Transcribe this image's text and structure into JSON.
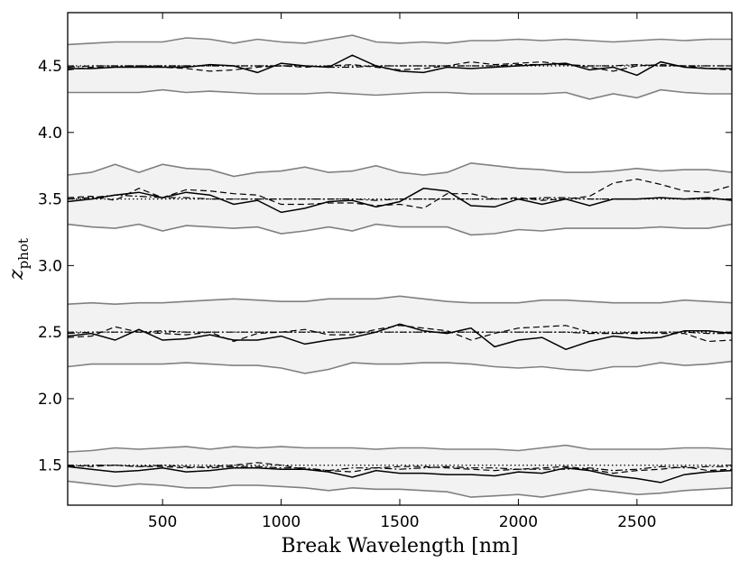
{
  "chart_data": {
    "type": "line",
    "xlabel": "Break Wavelength [nm]",
    "ylabel_main": "z",
    "ylabel_sub": "phot",
    "xlim": [
      100,
      2900
    ],
    "ylim": [
      1.2,
      4.9
    ],
    "x_ticks": [
      500,
      1000,
      1500,
      2000,
      2500
    ],
    "x_tick_labels": [
      "500",
      "1000",
      "1500",
      "2000",
      "2500"
    ],
    "y_ticks": [
      1.5,
      2.0,
      2.5,
      3.0,
      3.5,
      4.0,
      4.5
    ],
    "y_tick_labels": [
      "1.5",
      "2.0",
      "2.5",
      "3.0",
      "3.5",
      "4.0",
      "4.5"
    ],
    "grid": false,
    "x": [
      100,
      200,
      300,
      400,
      500,
      600,
      700,
      800,
      900,
      1000,
      1100,
      1200,
      1300,
      1400,
      1500,
      1600,
      1700,
      1800,
      1900,
      2000,
      2100,
      2200,
      2300,
      2400,
      2500,
      2600,
      2700,
      2800,
      2900
    ],
    "colors": {
      "band_fill": "#f2f2f2",
      "band_edge": "#808080",
      "solid": "#000000",
      "dashed": "#000000",
      "dashdot": "#000000",
      "truth": "#000000"
    },
    "groups": [
      {
        "truth": 1.5,
        "band_upper": [
          1.6,
          1.61,
          1.63,
          1.62,
          1.63,
          1.64,
          1.62,
          1.64,
          1.63,
          1.64,
          1.63,
          1.63,
          1.63,
          1.62,
          1.63,
          1.63,
          1.62,
          1.62,
          1.62,
          1.61,
          1.63,
          1.65,
          1.62,
          1.62,
          1.62,
          1.62,
          1.63,
          1.63,
          1.62
        ],
        "band_lower": [
          1.38,
          1.36,
          1.34,
          1.36,
          1.35,
          1.33,
          1.33,
          1.35,
          1.35,
          1.34,
          1.33,
          1.31,
          1.33,
          1.32,
          1.32,
          1.31,
          1.3,
          1.26,
          1.27,
          1.28,
          1.26,
          1.29,
          1.32,
          1.3,
          1.28,
          1.29,
          1.31,
          1.32,
          1.33
        ],
        "solid": [
          1.49,
          1.47,
          1.45,
          1.46,
          1.48,
          1.45,
          1.46,
          1.48,
          1.48,
          1.47,
          1.47,
          1.45,
          1.41,
          1.46,
          1.44,
          1.44,
          1.43,
          1.43,
          1.42,
          1.45,
          1.44,
          1.48,
          1.46,
          1.42,
          1.4,
          1.37,
          1.43,
          1.45,
          1.46
        ],
        "dashed": [
          1.5,
          1.49,
          1.5,
          1.49,
          1.49,
          1.48,
          1.49,
          1.5,
          1.52,
          1.5,
          1.47,
          1.46,
          1.45,
          1.48,
          1.49,
          1.49,
          1.48,
          1.47,
          1.46,
          1.47,
          1.48,
          1.49,
          1.47,
          1.44,
          1.46,
          1.47,
          1.49,
          1.46,
          1.47
        ],
        "dashdot": [
          1.49,
          1.5,
          1.5,
          1.49,
          1.5,
          1.49,
          1.48,
          1.49,
          1.49,
          1.48,
          1.48,
          1.46,
          1.48,
          1.48,
          1.47,
          1.48,
          1.49,
          1.48,
          1.48,
          1.47,
          1.47,
          1.47,
          1.48,
          1.46,
          1.47,
          1.49,
          1.48,
          1.49,
          1.49
        ]
      },
      {
        "truth": 2.5,
        "band_upper": [
          2.71,
          2.72,
          2.71,
          2.72,
          2.72,
          2.73,
          2.74,
          2.75,
          2.74,
          2.73,
          2.73,
          2.75,
          2.75,
          2.75,
          2.77,
          2.75,
          2.73,
          2.72,
          2.72,
          2.72,
          2.74,
          2.74,
          2.73,
          2.72,
          2.72,
          2.72,
          2.74,
          2.73,
          2.72
        ],
        "band_lower": [
          2.24,
          2.26,
          2.26,
          2.26,
          2.26,
          2.27,
          2.26,
          2.25,
          2.25,
          2.23,
          2.19,
          2.22,
          2.27,
          2.26,
          2.26,
          2.27,
          2.27,
          2.26,
          2.24,
          2.23,
          2.24,
          2.22,
          2.21,
          2.24,
          2.24,
          2.27,
          2.25,
          2.26,
          2.28
        ],
        "solid": [
          2.47,
          2.49,
          2.44,
          2.52,
          2.44,
          2.45,
          2.48,
          2.44,
          2.44,
          2.47,
          2.41,
          2.44,
          2.46,
          2.5,
          2.56,
          2.51,
          2.49,
          2.53,
          2.39,
          2.44,
          2.46,
          2.37,
          2.43,
          2.47,
          2.45,
          2.46,
          2.51,
          2.51,
          2.49
        ],
        "dashed": [
          2.46,
          2.47,
          2.54,
          2.5,
          2.49,
          2.48,
          2.5,
          2.43,
          2.49,
          2.5,
          2.52,
          2.48,
          2.48,
          2.52,
          2.55,
          2.53,
          2.51,
          2.44,
          2.49,
          2.53,
          2.54,
          2.55,
          2.5,
          2.49,
          2.5,
          2.49,
          2.49,
          2.43,
          2.44
        ],
        "dashdot": [
          2.49,
          2.5,
          2.5,
          2.5,
          2.51,
          2.5,
          2.5,
          2.5,
          2.5,
          2.5,
          2.5,
          2.5,
          2.5,
          2.5,
          2.5,
          2.5,
          2.5,
          2.5,
          2.5,
          2.5,
          2.5,
          2.5,
          2.49,
          2.49,
          2.49,
          2.5,
          2.5,
          2.49,
          2.49
        ]
      },
      {
        "truth": 3.5,
        "band_upper": [
          3.68,
          3.7,
          3.76,
          3.7,
          3.76,
          3.73,
          3.72,
          3.67,
          3.7,
          3.71,
          3.74,
          3.7,
          3.71,
          3.75,
          3.7,
          3.68,
          3.7,
          3.77,
          3.75,
          3.73,
          3.72,
          3.7,
          3.7,
          3.71,
          3.73,
          3.71,
          3.72,
          3.72,
          3.7
        ],
        "band_lower": [
          3.31,
          3.29,
          3.28,
          3.31,
          3.26,
          3.3,
          3.29,
          3.28,
          3.29,
          3.24,
          3.26,
          3.29,
          3.26,
          3.31,
          3.29,
          3.29,
          3.29,
          3.23,
          3.24,
          3.27,
          3.26,
          3.28,
          3.28,
          3.28,
          3.28,
          3.29,
          3.28,
          3.28,
          3.31
        ],
        "solid": [
          3.48,
          3.5,
          3.53,
          3.55,
          3.51,
          3.55,
          3.53,
          3.46,
          3.49,
          3.4,
          3.43,
          3.48,
          3.49,
          3.44,
          3.48,
          3.58,
          3.56,
          3.45,
          3.44,
          3.5,
          3.46,
          3.5,
          3.45,
          3.5,
          3.5,
          3.51,
          3.5,
          3.51,
          3.49
        ],
        "dashed": [
          3.51,
          3.52,
          3.49,
          3.58,
          3.51,
          3.57,
          3.56,
          3.54,
          3.53,
          3.46,
          3.46,
          3.47,
          3.47,
          3.45,
          3.46,
          3.43,
          3.54,
          3.54,
          3.5,
          3.51,
          3.49,
          3.5,
          3.52,
          3.62,
          3.65,
          3.61,
          3.56,
          3.55,
          3.6
        ],
        "dashdot": [
          3.5,
          3.51,
          3.53,
          3.52,
          3.51,
          3.51,
          3.5,
          3.5,
          3.5,
          3.5,
          3.5,
          3.5,
          3.5,
          3.49,
          3.5,
          3.5,
          3.5,
          3.5,
          3.5,
          3.5,
          3.51,
          3.51,
          3.5,
          3.5,
          3.5,
          3.51,
          3.5,
          3.5,
          3.5
        ]
      },
      {
        "truth": 4.5,
        "band_upper": [
          4.66,
          4.67,
          4.68,
          4.68,
          4.68,
          4.71,
          4.7,
          4.67,
          4.7,
          4.68,
          4.67,
          4.7,
          4.73,
          4.68,
          4.67,
          4.68,
          4.67,
          4.69,
          4.69,
          4.7,
          4.69,
          4.7,
          4.69,
          4.68,
          4.69,
          4.7,
          4.69,
          4.7,
          4.7
        ],
        "band_lower": [
          4.3,
          4.3,
          4.3,
          4.3,
          4.32,
          4.3,
          4.31,
          4.3,
          4.29,
          4.29,
          4.29,
          4.3,
          4.29,
          4.28,
          4.29,
          4.3,
          4.3,
          4.29,
          4.29,
          4.29,
          4.29,
          4.3,
          4.25,
          4.29,
          4.26,
          4.32,
          4.3,
          4.29,
          4.29
        ],
        "solid": [
          4.48,
          4.48,
          4.49,
          4.49,
          4.49,
          4.49,
          4.51,
          4.5,
          4.45,
          4.52,
          4.5,
          4.49,
          4.58,
          4.5,
          4.46,
          4.45,
          4.49,
          4.48,
          4.49,
          4.5,
          4.51,
          4.52,
          4.47,
          4.49,
          4.43,
          4.53,
          4.49,
          4.48,
          4.48
        ],
        "dashed": [
          4.47,
          4.49,
          4.49,
          4.5,
          4.49,
          4.48,
          4.46,
          4.47,
          4.49,
          4.5,
          4.49,
          4.5,
          4.51,
          4.49,
          4.47,
          4.48,
          4.5,
          4.53,
          4.51,
          4.52,
          4.53,
          4.51,
          4.49,
          4.46,
          4.5,
          4.51,
          4.5,
          4.48,
          4.47
        ],
        "dashdot": [
          4.49,
          4.5,
          4.5,
          4.5,
          4.5,
          4.5,
          4.5,
          4.5,
          4.5,
          4.5,
          4.5,
          4.49,
          4.49,
          4.5,
          4.5,
          4.5,
          4.5,
          4.5,
          4.5,
          4.51,
          4.51,
          4.51,
          4.5,
          4.5,
          4.51,
          4.5,
          4.5,
          4.5,
          4.5
        ]
      }
    ]
  }
}
